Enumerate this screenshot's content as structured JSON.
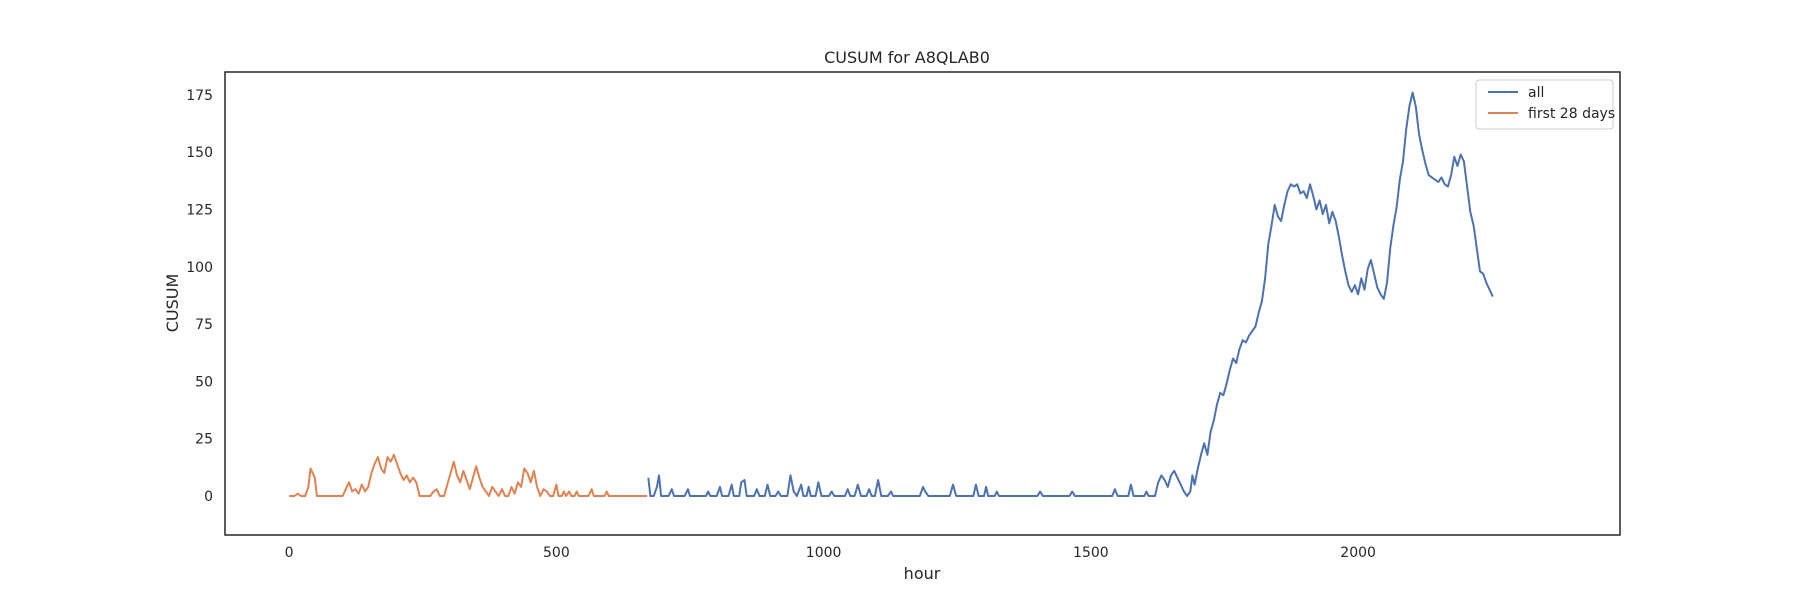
{
  "chart_data": {
    "type": "line",
    "title": "CUSUM for A8QLAB0",
    "xlabel": "hour",
    "ylabel": "CUSUM",
    "xlim": [
      -120,
      2490
    ],
    "ylim": [
      -17,
      185
    ],
    "xticks": [
      0,
      500,
      1000,
      1500,
      2000
    ],
    "yticks": [
      0,
      25,
      50,
      75,
      100,
      125,
      150,
      175
    ],
    "grid": false,
    "legend_position": "top-right",
    "series": [
      {
        "name": "all",
        "color": "#4c72b0",
        "points": [
          [
            672,
            8
          ],
          [
            676,
            0
          ],
          [
            682,
            0
          ],
          [
            688,
            4
          ],
          [
            692,
            9
          ],
          [
            696,
            0
          ],
          [
            710,
            0
          ],
          [
            716,
            3
          ],
          [
            720,
            0
          ],
          [
            740,
            0
          ],
          [
            746,
            3
          ],
          [
            750,
            0
          ],
          [
            780,
            0
          ],
          [
            784,
            2
          ],
          [
            788,
            0
          ],
          [
            800,
            0
          ],
          [
            806,
            4
          ],
          [
            810,
            0
          ],
          [
            822,
            0
          ],
          [
            828,
            5
          ],
          [
            832,
            0
          ],
          [
            842,
            0
          ],
          [
            846,
            6
          ],
          [
            852,
            7
          ],
          [
            856,
            0
          ],
          [
            870,
            0
          ],
          [
            875,
            3
          ],
          [
            880,
            0
          ],
          [
            890,
            0
          ],
          [
            895,
            5
          ],
          [
            900,
            0
          ],
          [
            910,
            0
          ],
          [
            915,
            2
          ],
          [
            920,
            0
          ],
          [
            932,
            0
          ],
          [
            938,
            9
          ],
          [
            944,
            2
          ],
          [
            950,
            0
          ],
          [
            958,
            5
          ],
          [
            962,
            0
          ],
          [
            968,
            0
          ],
          [
            972,
            4
          ],
          [
            976,
            0
          ],
          [
            985,
            0
          ],
          [
            990,
            6
          ],
          [
            996,
            0
          ],
          [
            1010,
            0
          ],
          [
            1015,
            2
          ],
          [
            1020,
            0
          ],
          [
            1040,
            0
          ],
          [
            1045,
            3
          ],
          [
            1050,
            0
          ],
          [
            1058,
            0
          ],
          [
            1064,
            5
          ],
          [
            1070,
            0
          ],
          [
            1080,
            0
          ],
          [
            1085,
            3
          ],
          [
            1090,
            0
          ],
          [
            1096,
            0
          ],
          [
            1102,
            7
          ],
          [
            1108,
            0
          ],
          [
            1120,
            0
          ],
          [
            1126,
            2
          ],
          [
            1130,
            0
          ],
          [
            1180,
            0
          ],
          [
            1186,
            4
          ],
          [
            1190,
            2
          ],
          [
            1196,
            0
          ],
          [
            1236,
            0
          ],
          [
            1242,
            5
          ],
          [
            1248,
            0
          ],
          [
            1280,
            0
          ],
          [
            1285,
            5
          ],
          [
            1290,
            0
          ],
          [
            1300,
            0
          ],
          [
            1304,
            4
          ],
          [
            1308,
            0
          ],
          [
            1320,
            0
          ],
          [
            1324,
            2
          ],
          [
            1328,
            0
          ],
          [
            1400,
            0
          ],
          [
            1405,
            2
          ],
          [
            1410,
            0
          ],
          [
            1460,
            0
          ],
          [
            1465,
            2
          ],
          [
            1470,
            0
          ],
          [
            1540,
            0
          ],
          [
            1545,
            3
          ],
          [
            1550,
            0
          ],
          [
            1570,
            0
          ],
          [
            1575,
            5
          ],
          [
            1580,
            0
          ],
          [
            1600,
            0
          ],
          [
            1604,
            2
          ],
          [
            1608,
            0
          ],
          [
            1620,
            0
          ],
          [
            1626,
            6
          ],
          [
            1632,
            9
          ],
          [
            1638,
            7
          ],
          [
            1644,
            4
          ],
          [
            1650,
            9
          ],
          [
            1656,
            11
          ],
          [
            1662,
            8
          ],
          [
            1668,
            5
          ],
          [
            1674,
            2
          ],
          [
            1680,
            0
          ],
          [
            1686,
            2
          ],
          [
            1690,
            9
          ],
          [
            1694,
            5
          ],
          [
            1700,
            12
          ],
          [
            1706,
            18
          ],
          [
            1712,
            23
          ],
          [
            1718,
            18
          ],
          [
            1724,
            28
          ],
          [
            1730,
            33
          ],
          [
            1736,
            40
          ],
          [
            1742,
            45
          ],
          [
            1748,
            44
          ],
          [
            1754,
            49
          ],
          [
            1760,
            55
          ],
          [
            1766,
            60
          ],
          [
            1772,
            58
          ],
          [
            1778,
            64
          ],
          [
            1784,
            68
          ],
          [
            1790,
            67
          ],
          [
            1796,
            70
          ],
          [
            1802,
            72
          ],
          [
            1808,
            74
          ],
          [
            1814,
            80
          ],
          [
            1820,
            85
          ],
          [
            1826,
            95
          ],
          [
            1832,
            110
          ],
          [
            1838,
            118
          ],
          [
            1844,
            127
          ],
          [
            1850,
            122
          ],
          [
            1856,
            120
          ],
          [
            1862,
            127
          ],
          [
            1868,
            133
          ],
          [
            1874,
            136
          ],
          [
            1880,
            135
          ],
          [
            1886,
            136
          ],
          [
            1892,
            132
          ],
          [
            1898,
            133
          ],
          [
            1904,
            130
          ],
          [
            1910,
            136
          ],
          [
            1916,
            131
          ],
          [
            1922,
            125
          ],
          [
            1928,
            129
          ],
          [
            1934,
            123
          ],
          [
            1940,
            127
          ],
          [
            1946,
            119
          ],
          [
            1952,
            124
          ],
          [
            1958,
            120
          ],
          [
            1964,
            113
          ],
          [
            1970,
            105
          ],
          [
            1976,
            98
          ],
          [
            1982,
            92
          ],
          [
            1988,
            89
          ],
          [
            1994,
            92
          ],
          [
            2000,
            88
          ],
          [
            2006,
            95
          ],
          [
            2012,
            90
          ],
          [
            2018,
            99
          ],
          [
            2024,
            103
          ],
          [
            2030,
            97
          ],
          [
            2036,
            91
          ],
          [
            2042,
            88
          ],
          [
            2048,
            86
          ],
          [
            2054,
            93
          ],
          [
            2060,
            108
          ],
          [
            2066,
            118
          ],
          [
            2072,
            126
          ],
          [
            2078,
            138
          ],
          [
            2084,
            146
          ],
          [
            2090,
            160
          ],
          [
            2096,
            170
          ],
          [
            2102,
            176
          ],
          [
            2108,
            170
          ],
          [
            2114,
            158
          ],
          [
            2120,
            151
          ],
          [
            2126,
            145
          ],
          [
            2132,
            140
          ],
          [
            2138,
            139
          ],
          [
            2144,
            138
          ],
          [
            2150,
            137
          ],
          [
            2156,
            139
          ],
          [
            2162,
            136
          ],
          [
            2168,
            135
          ],
          [
            2174,
            140
          ],
          [
            2180,
            148
          ],
          [
            2186,
            144
          ],
          [
            2192,
            149
          ],
          [
            2198,
            146
          ],
          [
            2204,
            135
          ],
          [
            2210,
            124
          ],
          [
            2216,
            118
          ],
          [
            2222,
            108
          ],
          [
            2228,
            98
          ],
          [
            2234,
            97
          ],
          [
            2240,
            93
          ],
          [
            2246,
            90
          ],
          [
            2252,
            87
          ]
        ]
      },
      {
        "name": "first 28 days",
        "color": "#dd8452",
        "points": [
          [
            0,
            0
          ],
          [
            10,
            0
          ],
          [
            16,
            1
          ],
          [
            22,
            0
          ],
          [
            30,
            0
          ],
          [
            36,
            4
          ],
          [
            40,
            12
          ],
          [
            44,
            10
          ],
          [
            48,
            8
          ],
          [
            52,
            0
          ],
          [
            60,
            0
          ],
          [
            100,
            0
          ],
          [
            106,
            3
          ],
          [
            112,
            6
          ],
          [
            118,
            2
          ],
          [
            124,
            3
          ],
          [
            130,
            1
          ],
          [
            136,
            5
          ],
          [
            142,
            2
          ],
          [
            148,
            4
          ],
          [
            154,
            10
          ],
          [
            160,
            14
          ],
          [
            166,
            17
          ],
          [
            172,
            12
          ],
          [
            178,
            10
          ],
          [
            184,
            17
          ],
          [
            190,
            15
          ],
          [
            196,
            18
          ],
          [
            202,
            14
          ],
          [
            208,
            10
          ],
          [
            214,
            7
          ],
          [
            220,
            9
          ],
          [
            226,
            6
          ],
          [
            232,
            8
          ],
          [
            238,
            6
          ],
          [
            244,
            0
          ],
          [
            254,
            0
          ],
          [
            264,
            0
          ],
          [
            270,
            2
          ],
          [
            276,
            3
          ],
          [
            282,
            0
          ],
          [
            290,
            0
          ],
          [
            296,
            5
          ],
          [
            302,
            10
          ],
          [
            308,
            15
          ],
          [
            314,
            9
          ],
          [
            320,
            6
          ],
          [
            326,
            11
          ],
          [
            332,
            7
          ],
          [
            338,
            3
          ],
          [
            344,
            8
          ],
          [
            350,
            13
          ],
          [
            356,
            8
          ],
          [
            362,
            4
          ],
          [
            368,
            2
          ],
          [
            374,
            0
          ],
          [
            380,
            4
          ],
          [
            386,
            2
          ],
          [
            392,
            0
          ],
          [
            398,
            3
          ],
          [
            404,
            0
          ],
          [
            410,
            0
          ],
          [
            416,
            4
          ],
          [
            422,
            1
          ],
          [
            428,
            6
          ],
          [
            434,
            4
          ],
          [
            440,
            12
          ],
          [
            446,
            10
          ],
          [
            452,
            6
          ],
          [
            458,
            11
          ],
          [
            464,
            4
          ],
          [
            470,
            0
          ],
          [
            476,
            3
          ],
          [
            482,
            2
          ],
          [
            488,
            0
          ],
          [
            494,
            0
          ],
          [
            500,
            5
          ],
          [
            504,
            0
          ],
          [
            510,
            0
          ],
          [
            514,
            2
          ],
          [
            518,
            0
          ],
          [
            524,
            2
          ],
          [
            528,
            0
          ],
          [
            534,
            0
          ],
          [
            538,
            2
          ],
          [
            542,
            0
          ],
          [
            560,
            0
          ],
          [
            566,
            3
          ],
          [
            570,
            0
          ],
          [
            590,
            0
          ],
          [
            594,
            2
          ],
          [
            598,
            0
          ],
          [
            640,
            0
          ],
          [
            670,
            0
          ]
        ]
      }
    ]
  }
}
